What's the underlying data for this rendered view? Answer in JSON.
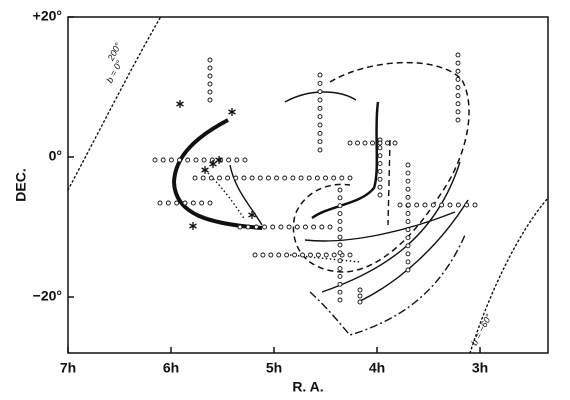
{
  "chart_data": {
    "type": "line",
    "xlabel": "R. A.",
    "ylabel": "DEC.",
    "xlim": [
      7,
      2.34
    ],
    "ylim": [
      -28,
      20
    ],
    "xticks": [
      {
        "value": 7,
        "label": "7h"
      },
      {
        "value": 6,
        "label": "6h"
      },
      {
        "value": 5,
        "label": "5h"
      },
      {
        "value": 4,
        "label": "4h"
      },
      {
        "value": 3,
        "label": "3h"
      }
    ],
    "yticks": [
      {
        "value": 20,
        "label": "+20°"
      },
      {
        "value": 0,
        "label": "0°"
      },
      {
        "value": -20,
        "label": "−20°"
      }
    ],
    "annotations": [
      "b = 0°",
      "200°",
      "b = −60°"
    ]
  }
}
